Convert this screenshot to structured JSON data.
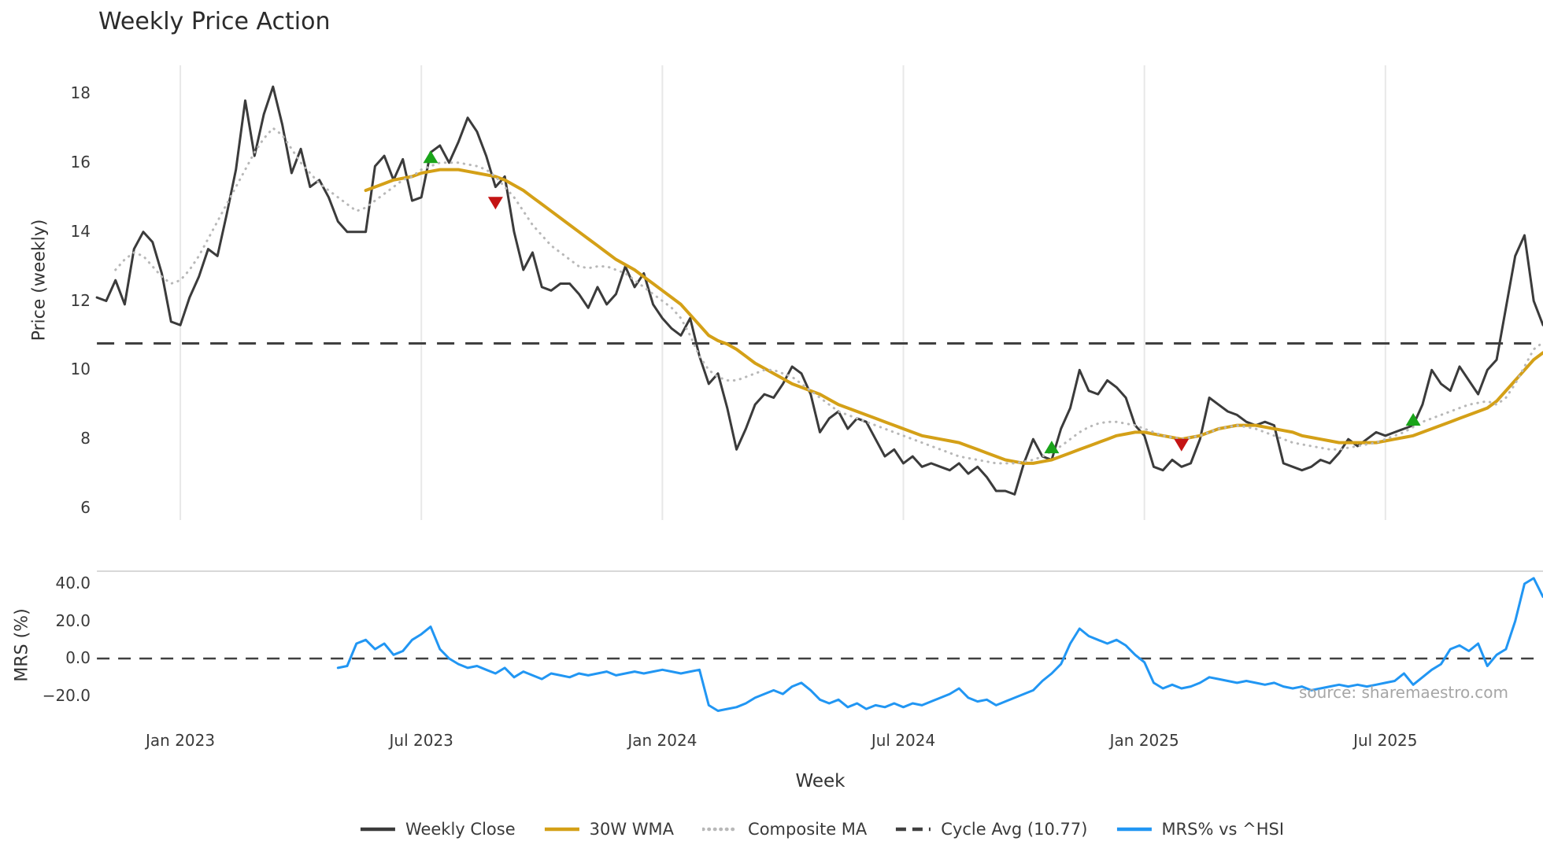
{
  "source_text": "source: sharemaestro.com",
  "chart_data": {
    "type": "line",
    "title": "Weekly Price Action",
    "xlabel": "Week",
    "price_ylabel": "Price (weekly)",
    "mrs_ylabel": "MRS (%)",
    "price_ylim": [
      5.5,
      18.6
    ],
    "mrs_ylim": [
      -37,
      47
    ],
    "grid": "vertical-only",
    "cycle_avg": 10.77,
    "price_yticks": [
      {
        "value": 18,
        "label": "18"
      },
      {
        "value": 16,
        "label": "16"
      },
      {
        "value": 14,
        "label": "14"
      },
      {
        "value": 12,
        "label": "12"
      },
      {
        "value": 10,
        "label": "10"
      },
      {
        "value": 8,
        "label": "8"
      },
      {
        "value": 6,
        "label": "6"
      }
    ],
    "mrs_yticks": [
      {
        "value": 40,
        "label": "40.0"
      },
      {
        "value": 20,
        "label": "20.0"
      },
      {
        "value": 0,
        "label": "0.0"
      },
      {
        "value": -20,
        "label": "−20.0"
      }
    ],
    "x_ticks": [
      {
        "week": 9,
        "label": "Jan 2023"
      },
      {
        "week": 35,
        "label": "Jul 2023"
      },
      {
        "week": 61,
        "label": "Jan 2024"
      },
      {
        "week": 87,
        "label": "Jul 2024"
      },
      {
        "week": 113,
        "label": "Jan 2025"
      },
      {
        "week": 139,
        "label": "Jul 2025"
      }
    ],
    "signal_colors": {
      "buy": "#1aa41a",
      "sell": "#c41414"
    },
    "signals": [
      {
        "week": 36,
        "price": 16.15,
        "type": "buy"
      },
      {
        "week": 43,
        "price": 14.85,
        "type": "sell"
      },
      {
        "week": 103,
        "price": 7.75,
        "type": "buy"
      },
      {
        "week": 117,
        "price": 7.85,
        "type": "sell"
      },
      {
        "week": 142,
        "price": 8.55,
        "type": "buy"
      }
    ],
    "legend": [
      {
        "label": "Weekly Close",
        "color": "#3b3b3b",
        "style": "solid"
      },
      {
        "label": "30W WMA",
        "color": "#d4a017",
        "style": "solid"
      },
      {
        "label": "Composite MA",
        "color": "#b8b8b8",
        "style": "dotted"
      },
      {
        "label": "Cycle Avg (10.77)",
        "color": "#404040",
        "style": "dashed"
      },
      {
        "label": "MRS% vs ^HSI",
        "color": "#2196f3",
        "style": "solid"
      }
    ],
    "series": [
      {
        "name": "Weekly Close",
        "panel": "price",
        "color": "#3b3b3b",
        "width": 3,
        "dash": null,
        "values": [
          12.1,
          12.0,
          12.6,
          11.9,
          13.5,
          14.0,
          13.7,
          12.8,
          11.4,
          11.3,
          12.1,
          12.7,
          13.5,
          13.3,
          14.5,
          15.8,
          17.8,
          16.2,
          17.4,
          18.2,
          17.1,
          15.7,
          16.4,
          15.3,
          15.5,
          15.0,
          14.3,
          14.0,
          14.0,
          14.0,
          15.9,
          16.2,
          15.5,
          16.1,
          14.9,
          15.0,
          16.3,
          16.5,
          16.0,
          16.6,
          17.3,
          16.9,
          16.2,
          15.3,
          15.6,
          14.0,
          12.9,
          13.4,
          12.4,
          12.3,
          12.5,
          12.5,
          12.2,
          11.8,
          12.4,
          11.9,
          12.2,
          13.0,
          12.4,
          12.8,
          11.9,
          11.5,
          11.2,
          11.0,
          11.5,
          10.4,
          9.6,
          9.9,
          8.9,
          7.7,
          8.3,
          9.0,
          9.3,
          9.2,
          9.6,
          10.1,
          9.9,
          9.3,
          8.2,
          8.6,
          8.8,
          8.3,
          8.6,
          8.5,
          8.0,
          7.5,
          7.7,
          7.3,
          7.5,
          7.2,
          7.3,
          7.2,
          7.1,
          7.3,
          7.0,
          7.2,
          6.9,
          6.5,
          6.5,
          6.4,
          7.3,
          8.0,
          7.5,
          7.4,
          8.3,
          8.9,
          10.0,
          9.4,
          9.3,
          9.7,
          9.5,
          9.2,
          8.4,
          8.1,
          7.2,
          7.1,
          7.4,
          7.2,
          7.3,
          8.0,
          9.2,
          9.0,
          8.8,
          8.7,
          8.5,
          8.4,
          8.5,
          8.4,
          7.3,
          7.2,
          7.1,
          7.2,
          7.4,
          7.3,
          7.6,
          8.0,
          7.8,
          8.0,
          8.2,
          8.1,
          8.2,
          8.3,
          8.4,
          9.0,
          10.0,
          9.6,
          9.4,
          10.1,
          9.7,
          9.3,
          10.0,
          10.3,
          11.8,
          13.3,
          13.9,
          12.0,
          11.3
        ]
      },
      {
        "name": "30W WMA",
        "panel": "price",
        "color": "#d4a017",
        "width": 4,
        "dash": null,
        "values": [
          null,
          null,
          null,
          null,
          null,
          null,
          null,
          null,
          null,
          null,
          null,
          null,
          null,
          null,
          null,
          null,
          null,
          null,
          null,
          null,
          null,
          null,
          null,
          null,
          null,
          null,
          null,
          null,
          null,
          15.2,
          15.3,
          15.4,
          15.5,
          15.55,
          15.6,
          15.7,
          15.75,
          15.8,
          15.8,
          15.8,
          15.75,
          15.7,
          15.65,
          15.6,
          15.5,
          15.35,
          15.2,
          15.0,
          14.8,
          14.6,
          14.4,
          14.2,
          14.0,
          13.8,
          13.6,
          13.4,
          13.2,
          13.05,
          12.9,
          12.7,
          12.5,
          12.3,
          12.1,
          11.9,
          11.6,
          11.3,
          11.0,
          10.85,
          10.75,
          10.6,
          10.4,
          10.2,
          10.05,
          9.9,
          9.75,
          9.6,
          9.5,
          9.4,
          9.3,
          9.15,
          9.0,
          8.9,
          8.8,
          8.7,
          8.6,
          8.5,
          8.4,
          8.3,
          8.2,
          8.1,
          8.05,
          8.0,
          7.95,
          7.9,
          7.8,
          7.7,
          7.6,
          7.5,
          7.4,
          7.35,
          7.3,
          7.3,
          7.35,
          7.4,
          7.5,
          7.6,
          7.7,
          7.8,
          7.9,
          8.0,
          8.1,
          8.15,
          8.2,
          8.2,
          8.15,
          8.1,
          8.05,
          8.0,
          8.05,
          8.1,
          8.2,
          8.3,
          8.35,
          8.4,
          8.4,
          8.4,
          8.35,
          8.3,
          8.25,
          8.2,
          8.1,
          8.05,
          8.0,
          7.95,
          7.9,
          7.9,
          7.9,
          7.9,
          7.9,
          7.95,
          8.0,
          8.05,
          8.1,
          8.2,
          8.3,
          8.4,
          8.5,
          8.6,
          8.7,
          8.8,
          8.9,
          9.1,
          9.4,
          9.7,
          10.0,
          10.3,
          10.5
        ]
      },
      {
        "name": "Composite MA",
        "panel": "price",
        "color": "#b8b8b8",
        "width": 3,
        "dash": "dotted",
        "values": [
          null,
          null,
          12.9,
          13.2,
          13.4,
          13.3,
          13.0,
          12.7,
          12.5,
          12.6,
          12.9,
          13.3,
          13.8,
          14.3,
          14.8,
          15.3,
          15.8,
          16.3,
          16.7,
          17.0,
          16.8,
          16.4,
          16.0,
          15.7,
          15.4,
          15.2,
          15.0,
          14.8,
          14.6,
          14.7,
          14.9,
          15.1,
          15.3,
          15.5,
          15.6,
          15.8,
          15.9,
          16.0,
          16.0,
          16.0,
          15.95,
          15.9,
          15.8,
          15.6,
          15.3,
          15.0,
          14.6,
          14.2,
          13.9,
          13.6,
          13.4,
          13.2,
          13.0,
          12.95,
          13.0,
          13.0,
          12.9,
          12.8,
          12.6,
          12.4,
          12.2,
          12.0,
          11.8,
          11.5,
          11.0,
          10.4,
          10.0,
          9.8,
          9.7,
          9.7,
          9.8,
          9.9,
          10.0,
          10.0,
          9.9,
          9.8,
          9.6,
          9.4,
          9.2,
          9.0,
          8.8,
          8.7,
          8.6,
          8.5,
          8.4,
          8.3,
          8.2,
          8.1,
          8.0,
          7.9,
          7.8,
          7.7,
          7.6,
          7.5,
          7.45,
          7.4,
          7.35,
          7.3,
          7.3,
          7.3,
          7.35,
          7.4,
          7.5,
          7.65,
          7.8,
          8.0,
          8.2,
          8.35,
          8.45,
          8.5,
          8.5,
          8.45,
          8.4,
          8.3,
          8.2,
          8.1,
          8.05,
          8.0,
          8.05,
          8.1,
          8.2,
          8.3,
          8.35,
          8.4,
          8.35,
          8.3,
          8.2,
          8.1,
          8.0,
          7.9,
          7.85,
          7.8,
          7.75,
          7.7,
          7.7,
          7.75,
          7.8,
          7.85,
          7.9,
          8.0,
          8.1,
          8.2,
          8.35,
          8.5,
          8.6,
          8.7,
          8.8,
          8.9,
          9.0,
          9.05,
          9.1,
          9.0,
          9.2,
          9.6,
          10.1,
          10.6,
          10.8
        ]
      },
      {
        "name": "MRS% vs ^HSI",
        "panel": "mrs",
        "color": "#2196f3",
        "width": 3,
        "dash": null,
        "values": [
          null,
          null,
          null,
          null,
          null,
          null,
          null,
          null,
          null,
          null,
          null,
          null,
          null,
          null,
          null,
          null,
          null,
          null,
          null,
          null,
          null,
          null,
          null,
          null,
          null,
          null,
          -5,
          -4,
          8,
          10,
          5,
          8,
          2,
          4,
          10,
          13,
          17,
          5,
          0,
          -3,
          -5,
          -4,
          -6,
          -8,
          -5,
          -10,
          -7,
          -9,
          -11,
          -8,
          -9,
          -10,
          -8,
          -9,
          -8,
          -7,
          -9,
          -8,
          -7,
          -8,
          -7,
          -6,
          -7,
          -8,
          -7,
          -6,
          -25,
          -28,
          -27,
          -26,
          -24,
          -21,
          -19,
          -17,
          -19,
          -15,
          -13,
          -17,
          -22,
          -24,
          -22,
          -26,
          -24,
          -27,
          -25,
          -26,
          -24,
          -26,
          -24,
          -25,
          -23,
          -21,
          -19,
          -16,
          -21,
          -23,
          -22,
          -25,
          -23,
          -21,
          -19,
          -17,
          -12,
          -8,
          -3,
          8,
          16,
          12,
          10,
          8,
          10,
          7,
          2,
          -2,
          -13,
          -16,
          -14,
          -16,
          -15,
          -13,
          -10,
          -11,
          -12,
          -13,
          -12,
          -13,
          -14,
          -13,
          -15,
          -16,
          -15,
          -17,
          -16,
          -15,
          -14,
          -15,
          -14,
          -15,
          -14,
          -13,
          -12,
          -8,
          -14,
          -10,
          -6,
          -3,
          5,
          7,
          4,
          8,
          -4,
          2,
          5,
          20,
          40,
          43,
          33
        ]
      }
    ]
  }
}
